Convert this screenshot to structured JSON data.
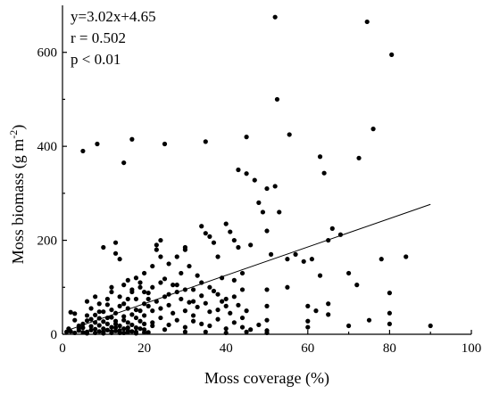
{
  "chart_data": {
    "type": "scatter",
    "xlabel": "Moss coverage (%)",
    "ylabel_main": "Moss biomass (g m",
    "ylabel_sup": "-2",
    "ylabel_close": ")",
    "xlim": [
      0,
      100
    ],
    "ylim": [
      0,
      700
    ],
    "xticks": [
      0,
      20,
      40,
      60,
      80,
      100
    ],
    "yticks": [
      0,
      200,
      400,
      600
    ],
    "annotations": {
      "equation": "y=3.02x+4.65",
      "r_text": "r = 0.502",
      "p_text": "p < 0.01"
    },
    "fit": {
      "slope": 3.02,
      "intercept": 4.65,
      "x_range": [
        1,
        90
      ]
    },
    "points": [
      [
        5,
        390
      ],
      [
        8.5,
        405
      ],
      [
        15,
        365
      ],
      [
        17,
        415
      ],
      [
        25,
        405
      ],
      [
        35,
        410
      ],
      [
        45,
        420
      ],
      [
        52,
        675
      ],
      [
        52.5,
        500
      ],
      [
        55.5,
        425
      ],
      [
        74.5,
        665
      ],
      [
        76,
        437
      ],
      [
        80.5,
        595
      ],
      [
        43,
        350
      ],
      [
        45,
        342
      ],
      [
        47,
        328
      ],
      [
        50,
        310
      ],
      [
        52,
        315
      ],
      [
        63,
        378
      ],
      [
        64,
        343
      ],
      [
        72.5,
        375
      ],
      [
        84,
        165
      ],
      [
        90,
        18
      ],
      [
        2,
        47
      ],
      [
        3,
        44
      ],
      [
        4,
        8
      ],
      [
        5,
        22
      ],
      [
        5,
        14
      ],
      [
        6,
        29
      ],
      [
        6,
        5
      ],
      [
        7,
        17
      ],
      [
        7,
        32
      ],
      [
        8,
        11
      ],
      [
        8,
        25
      ],
      [
        8,
        41
      ],
      [
        9,
        6
      ],
      [
        9,
        19
      ],
      [
        9,
        34
      ],
      [
        10,
        27
      ],
      [
        10,
        12
      ],
      [
        10,
        48
      ],
      [
        11,
        22
      ],
      [
        11,
        9
      ],
      [
        11,
        63
      ],
      [
        12,
        15
      ],
      [
        12,
        36
      ],
      [
        12,
        52
      ],
      [
        13,
        7
      ],
      [
        13,
        28
      ],
      [
        13,
        45
      ],
      [
        14,
        18
      ],
      [
        14,
        60
      ],
      [
        15,
        12
      ],
      [
        15,
        38
      ],
      [
        15,
        30
      ],
      [
        16,
        8
      ],
      [
        16,
        25
      ],
      [
        16,
        55
      ],
      [
        17,
        20
      ],
      [
        17,
        42
      ],
      [
        18,
        14
      ],
      [
        18,
        35
      ],
      [
        18,
        5
      ],
      [
        19,
        28
      ],
      [
        19,
        50
      ],
      [
        20,
        10
      ],
      [
        20,
        22
      ],
      [
        20,
        40
      ],
      [
        3,
        30
      ],
      [
        4,
        18
      ],
      [
        6,
        40
      ],
      [
        7,
        9
      ],
      [
        9,
        48
      ],
      [
        10,
        5
      ],
      [
        12,
        3
      ],
      [
        14,
        8
      ],
      [
        15,
        3
      ],
      [
        16,
        14
      ],
      [
        17,
        6
      ],
      [
        19,
        12
      ],
      [
        21,
        4
      ],
      [
        22,
        18
      ],
      [
        11,
        35
      ],
      [
        13,
        22
      ],
      [
        2,
        6
      ],
      [
        3,
        3
      ],
      [
        4,
        12
      ],
      [
        6,
        2
      ],
      [
        8,
        3
      ],
      [
        10,
        2
      ],
      [
        12,
        6
      ],
      [
        13,
        14
      ],
      [
        14,
        3
      ],
      [
        16,
        4
      ],
      [
        18,
        2
      ],
      [
        20,
        4
      ],
      [
        1,
        5
      ],
      [
        1.5,
        12
      ],
      [
        5,
        4
      ],
      [
        10,
        185
      ],
      [
        13,
        195
      ],
      [
        13,
        172
      ],
      [
        14,
        160
      ],
      [
        16,
        115
      ],
      [
        17,
        95
      ],
      [
        18,
        120
      ],
      [
        19,
        110
      ],
      [
        20,
        130
      ],
      [
        21,
        88
      ],
      [
        22,
        145
      ],
      [
        23,
        180
      ],
      [
        23,
        190
      ],
      [
        24,
        200
      ],
      [
        24,
        165
      ],
      [
        25,
        118
      ],
      [
        26,
        150
      ],
      [
        27,
        105
      ],
      [
        28,
        165
      ],
      [
        29,
        130
      ],
      [
        30,
        180
      ],
      [
        30,
        185
      ],
      [
        31,
        145
      ],
      [
        32,
        95
      ],
      [
        33,
        125
      ],
      [
        34,
        230
      ],
      [
        35,
        215
      ],
      [
        36,
        208
      ],
      [
        37,
        195
      ],
      [
        38,
        165
      ],
      [
        39,
        120
      ],
      [
        40,
        235
      ],
      [
        41,
        218
      ],
      [
        42,
        200
      ],
      [
        43,
        185
      ],
      [
        44,
        130
      ],
      [
        21,
        60
      ],
      [
        22,
        50
      ],
      [
        23,
        70
      ],
      [
        24,
        55
      ],
      [
        25,
        80
      ],
      [
        26,
        62
      ],
      [
        27,
        45
      ],
      [
        28,
        90
      ],
      [
        29,
        75
      ],
      [
        30,
        50
      ],
      [
        31,
        68
      ],
      [
        32,
        40
      ],
      [
        33,
        58
      ],
      [
        34,
        82
      ],
      [
        35,
        66
      ],
      [
        36,
        48
      ],
      [
        37,
        92
      ],
      [
        38,
        52
      ],
      [
        39,
        70
      ],
      [
        40,
        60
      ],
      [
        41,
        45
      ],
      [
        42,
        80
      ],
      [
        43,
        62
      ],
      [
        44,
        35
      ],
      [
        45,
        50
      ],
      [
        20,
        90
      ],
      [
        22,
        100
      ],
      [
        24,
        110
      ],
      [
        26,
        85
      ],
      [
        28,
        105
      ],
      [
        30,
        95
      ],
      [
        32,
        70
      ],
      [
        34,
        110
      ],
      [
        36,
        100
      ],
      [
        38,
        85
      ],
      [
        40,
        75
      ],
      [
        42,
        115
      ],
      [
        44,
        95
      ],
      [
        22,
        25
      ],
      [
        24,
        35
      ],
      [
        26,
        20
      ],
      [
        28,
        30
      ],
      [
        30,
        15
      ],
      [
        32,
        28
      ],
      [
        34,
        22
      ],
      [
        36,
        18
      ],
      [
        38,
        32
      ],
      [
        40,
        12
      ],
      [
        42,
        25
      ],
      [
        44,
        15
      ],
      [
        46,
        10
      ],
      [
        48,
        20
      ],
      [
        50,
        8
      ],
      [
        35,
        5
      ],
      [
        40,
        3
      ],
      [
        45,
        5
      ],
      [
        50,
        3
      ],
      [
        25,
        10
      ],
      [
        30,
        5
      ],
      [
        46,
        190
      ],
      [
        48,
        280
      ],
      [
        49,
        260
      ],
      [
        50,
        220
      ],
      [
        51,
        170
      ],
      [
        53,
        260
      ],
      [
        55,
        160
      ],
      [
        57,
        170
      ],
      [
        59,
        155
      ],
      [
        61,
        160
      ],
      [
        63,
        125
      ],
      [
        65,
        200
      ],
      [
        66,
        225
      ],
      [
        68,
        212
      ],
      [
        70,
        130
      ],
      [
        72,
        105
      ],
      [
        78,
        160
      ],
      [
        80,
        88
      ],
      [
        50,
        95
      ],
      [
        50,
        60
      ],
      [
        50,
        30
      ],
      [
        55,
        100
      ],
      [
        60,
        60
      ],
      [
        60,
        28
      ],
      [
        60,
        15
      ],
      [
        62,
        50
      ],
      [
        65,
        65
      ],
      [
        65,
        42
      ],
      [
        70,
        18
      ],
      [
        75,
        30
      ],
      [
        80,
        45
      ],
      [
        80,
        22
      ],
      [
        11,
        75
      ],
      [
        12,
        90
      ],
      [
        14,
        80
      ],
      [
        15,
        65
      ],
      [
        18,
        75
      ],
      [
        19,
        100
      ],
      [
        6,
        70
      ],
      [
        8,
        80
      ],
      [
        12,
        100
      ],
      [
        15,
        105
      ],
      [
        17,
        90
      ],
      [
        20,
        65
      ],
      [
        7,
        55
      ],
      [
        9,
        65
      ],
      [
        16,
        75
      ],
      [
        18,
        52
      ],
      [
        21,
        75
      ]
    ]
  }
}
